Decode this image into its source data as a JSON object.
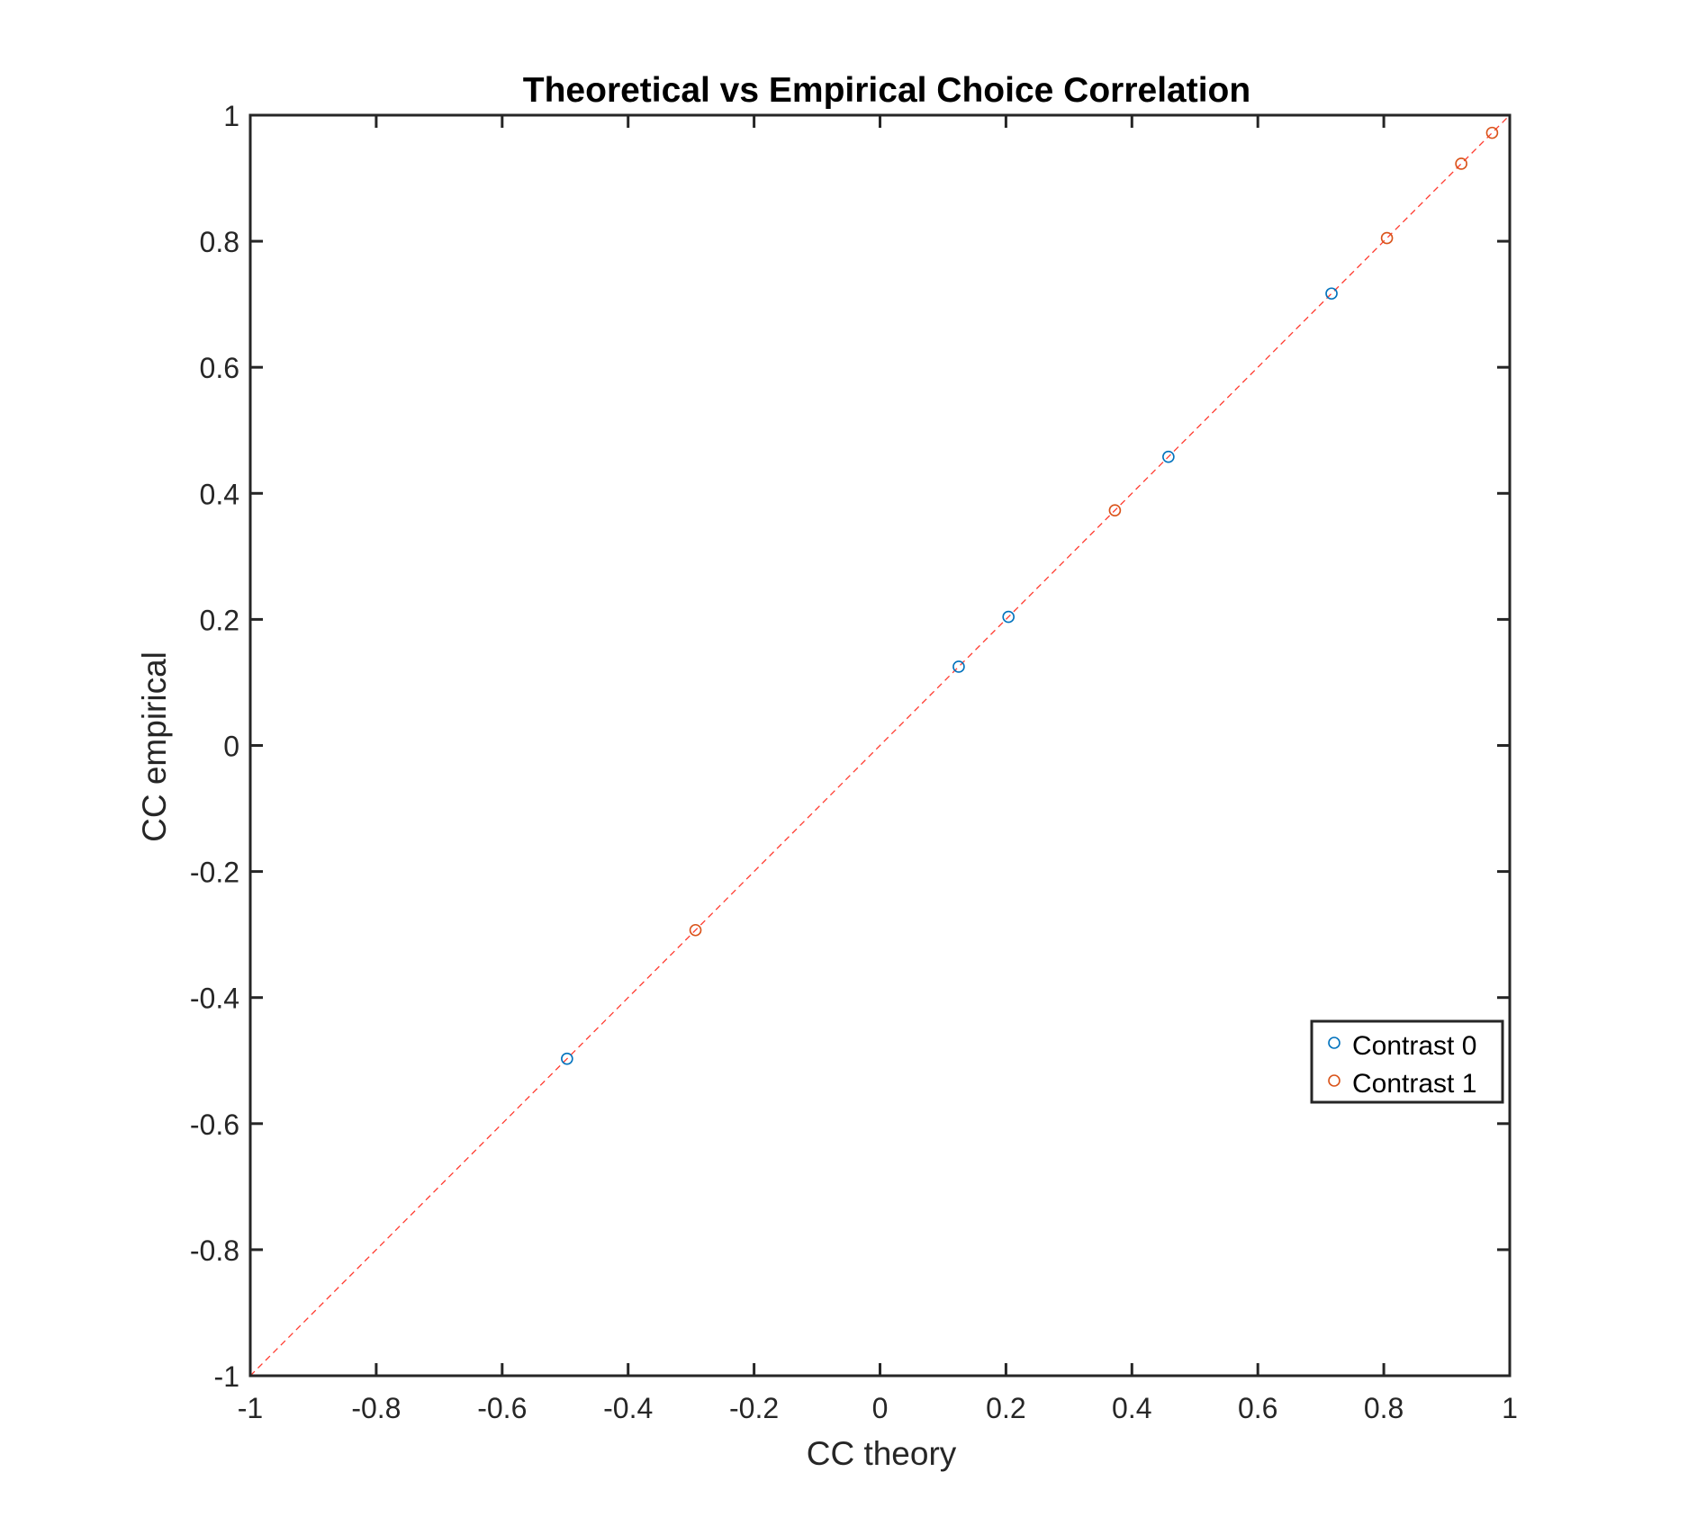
{
  "chart_data": {
    "type": "scatter",
    "title": "Theoretical vs Empirical Choice Correlation",
    "xlabel": "CC theory",
    "ylabel": "CC empirical",
    "xlim": [
      -1,
      1
    ],
    "ylim": [
      -1,
      1
    ],
    "xticks": [
      -1,
      -0.8,
      -0.6,
      -0.4,
      -0.2,
      0,
      0.2,
      0.4,
      0.6,
      0.8,
      1
    ],
    "yticks": [
      -1,
      -0.8,
      -0.6,
      -0.4,
      -0.2,
      0,
      0.2,
      0.4,
      0.6,
      0.8,
      1
    ],
    "xtick_labels": [
      "-1",
      "-0.8",
      "-0.6",
      "-0.4",
      "-0.2",
      "0",
      "0.2",
      "0.4",
      "0.6",
      "0.8",
      "1"
    ],
    "ytick_labels": [
      "-1",
      "-0.8",
      "-0.6",
      "-0.4",
      "-0.2",
      "0",
      "0.2",
      "0.4",
      "0.6",
      "0.8",
      "1"
    ],
    "grid": false,
    "legend_position": "right, lower-middle",
    "series": [
      {
        "name": "Contrast 0",
        "color": "#0072BD",
        "marker": "open-circle",
        "x": [
          -0.497,
          0.125,
          0.204,
          0.458,
          0.717
        ],
        "y": [
          -0.497,
          0.125,
          0.204,
          0.458,
          0.717
        ]
      },
      {
        "name": "Contrast 1",
        "color": "#D95319",
        "marker": "open-circle",
        "x": [
          -0.293,
          0.373,
          0.805,
          0.923,
          0.972
        ],
        "y": [
          -0.293,
          0.373,
          0.805,
          0.923,
          0.972
        ]
      }
    ],
    "reference_line": {
      "style": "dashed",
      "color": "#FF3B30",
      "x": [
        -1,
        1
      ],
      "y": [
        -1,
        1
      ]
    }
  }
}
